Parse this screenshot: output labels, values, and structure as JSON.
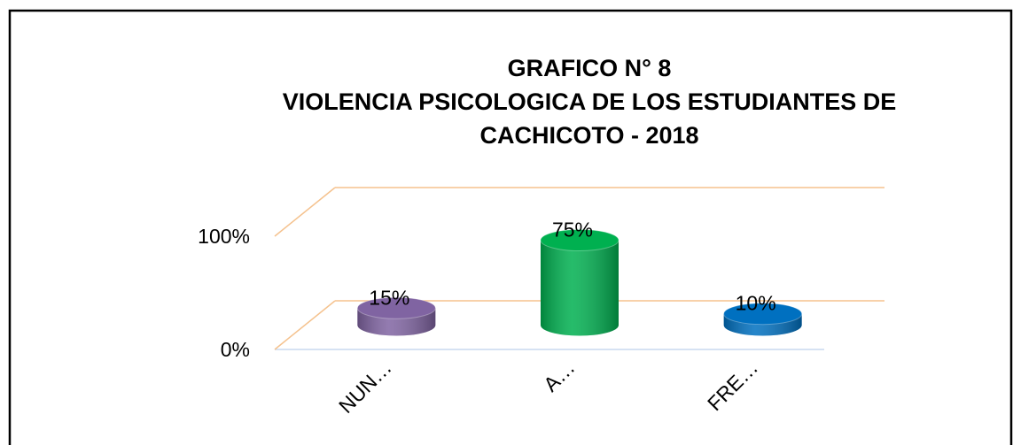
{
  "chart_data": {
    "type": "bar3d",
    "title": [
      "GRAFICO N° 8",
      "VIOLENCIA PSICOLOGICA DE LOS ESTUDIANTES DE",
      "CACHICOTO - 2018"
    ],
    "categories": [
      "NUN…",
      "A…",
      "FRE…"
    ],
    "values": [
      15,
      75,
      10
    ],
    "value_labels": [
      "15%",
      "75%",
      "10%"
    ],
    "colors": [
      "#8064a2",
      "#00b050",
      "#0070c0"
    ],
    "ylim": [
      0,
      100
    ],
    "yticks": [
      {
        "value": 0,
        "label": "0%"
      },
      {
        "value": 100,
        "label": "100%"
      }
    ],
    "grid": true
  }
}
